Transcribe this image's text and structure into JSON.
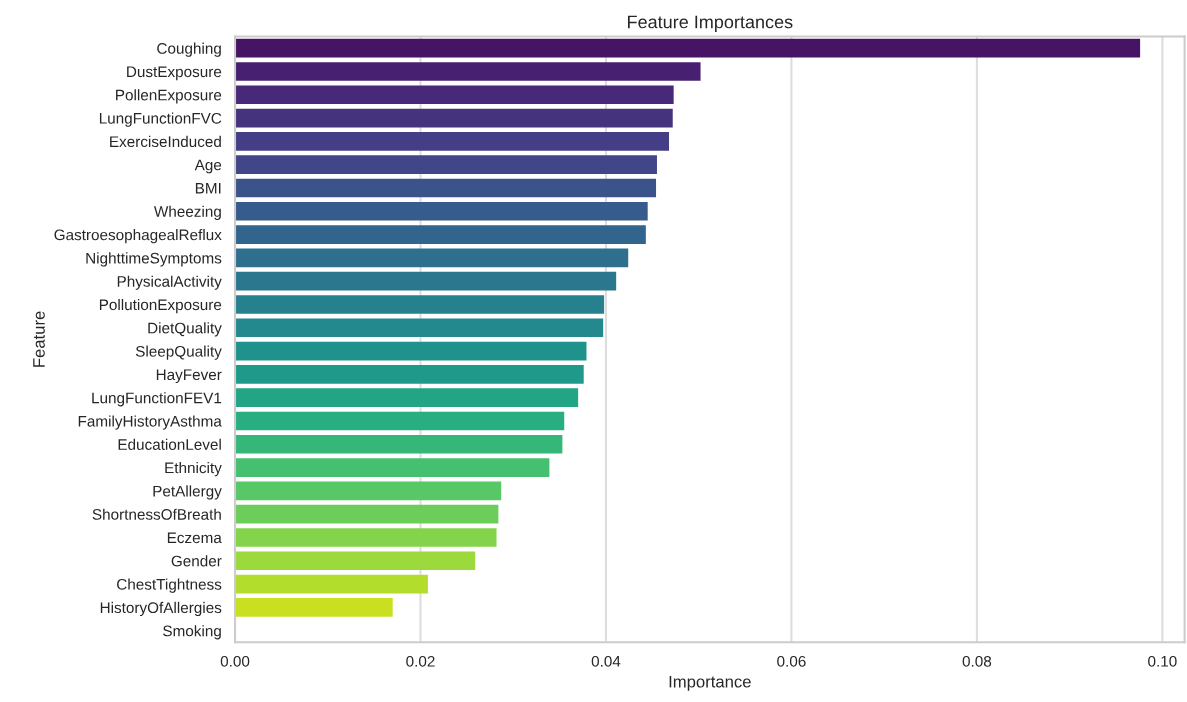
{
  "chart_data": {
    "type": "bar",
    "orientation": "horizontal",
    "title": "Feature Importances",
    "xlabel": "Importance",
    "ylabel": "Feature",
    "categories": [
      "Coughing",
      "DustExposure",
      "PollenExposure",
      "LungFunctionFVC",
      "ExerciseInduced",
      "Age",
      "BMI",
      "Wheezing",
      "GastroesophagealReflux",
      "NighttimeSymptoms",
      "PhysicalActivity",
      "PollutionExposure",
      "DietQuality",
      "SleepQuality",
      "HayFever",
      "LungFunctionFEV1",
      "FamilyHistoryAsthma",
      "EducationLevel",
      "Ethnicity",
      "PetAllergy",
      "ShortnessOfBreath",
      "Eczema",
      "Gender",
      "ChestTightness",
      "HistoryOfAllergies",
      "Smoking"
    ],
    "values": [
      0.0976,
      0.0502,
      0.0473,
      0.0472,
      0.0468,
      0.0455,
      0.0454,
      0.0445,
      0.0443,
      0.0424,
      0.0411,
      0.0398,
      0.0397,
      0.0379,
      0.0376,
      0.037,
      0.0355,
      0.0353,
      0.0339,
      0.0287,
      0.0284,
      0.0282,
      0.0259,
      0.0208,
      0.017,
      0.0
    ],
    "colors": [
      "#471365",
      "#482071",
      "#482878",
      "#46337e",
      "#433e85",
      "#404688",
      "#3b528b",
      "#365c8d",
      "#32658e",
      "#2e6f8e",
      "#2a778e",
      "#27808e",
      "#23898e",
      "#20928c",
      "#1f9a8a",
      "#21a585",
      "#28ae80",
      "#35b779",
      "#45bf70",
      "#58c765",
      "#6ccd5a",
      "#84d44b",
      "#9bd93c",
      "#b2dd2d",
      "#c8e020",
      "#e2e418"
    ],
    "xlim": [
      0,
      0.1024
    ],
    "xticks": [
      {
        "value": 0,
        "label": "0.00"
      },
      {
        "value": 0.02,
        "label": "0.02"
      },
      {
        "value": 0.04,
        "label": "0.04"
      },
      {
        "value": 0.06,
        "label": "0.06"
      },
      {
        "value": 0.08,
        "label": "0.08"
      },
      {
        "value": 0.1,
        "label": "0.10"
      }
    ],
    "grid": "x",
    "legend": false
  }
}
